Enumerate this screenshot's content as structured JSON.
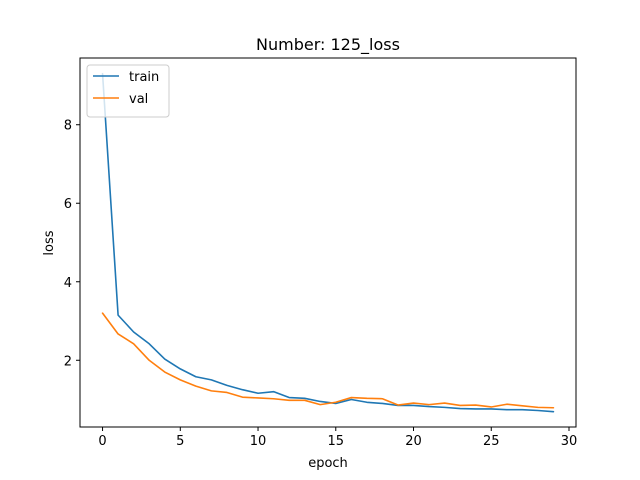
{
  "chart_data": {
    "type": "line",
    "title": "Number: 125_loss",
    "xlabel": "epoch",
    "ylabel": "loss",
    "xlim": [
      -1.45,
      30.45
    ],
    "ylim": [
      0.3,
      9.7
    ],
    "xticks": [
      0,
      5,
      10,
      15,
      20,
      25,
      30
    ],
    "yticks": [
      2,
      4,
      6,
      8
    ],
    "grid": false,
    "legend_position": "top-left",
    "x": [
      0,
      1,
      2,
      3,
      4,
      5,
      6,
      7,
      8,
      9,
      10,
      11,
      12,
      13,
      14,
      15,
      16,
      17,
      18,
      19,
      20,
      21,
      22,
      23,
      24,
      25,
      26,
      27,
      28,
      29
    ],
    "series": [
      {
        "name": "train",
        "color": "#1f77b4",
        "values": [
          9.3,
          3.15,
          2.72,
          2.42,
          2.03,
          1.78,
          1.58,
          1.5,
          1.36,
          1.25,
          1.16,
          1.2,
          1.05,
          1.03,
          0.95,
          0.9,
          1.0,
          0.93,
          0.9,
          0.85,
          0.85,
          0.82,
          0.8,
          0.77,
          0.76,
          0.76,
          0.74,
          0.74,
          0.72,
          0.69
        ]
      },
      {
        "name": "val",
        "color": "#ff7f0e",
        "values": [
          3.2,
          2.67,
          2.42,
          2.0,
          1.7,
          1.5,
          1.34,
          1.22,
          1.18,
          1.06,
          1.04,
          1.02,
          0.98,
          0.98,
          0.87,
          0.93,
          1.05,
          1.03,
          1.02,
          0.86,
          0.91,
          0.87,
          0.91,
          0.85,
          0.86,
          0.81,
          0.88,
          0.84,
          0.8,
          0.79
        ]
      }
    ]
  }
}
